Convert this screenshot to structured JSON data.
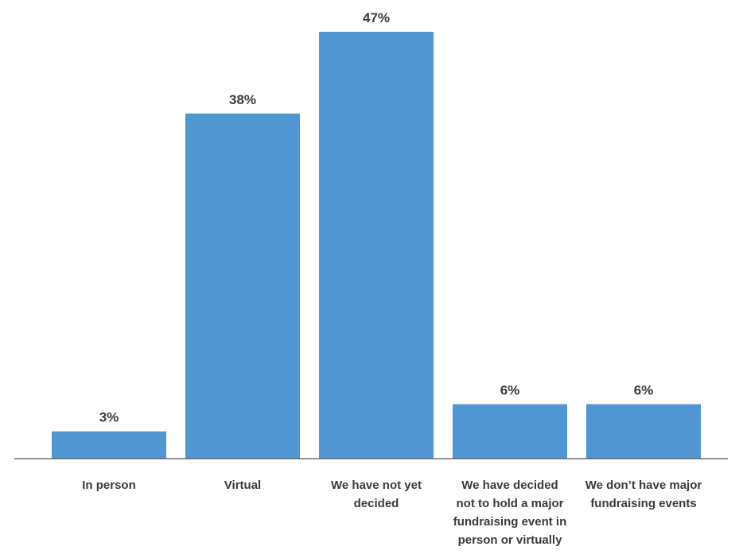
{
  "chart_data": {
    "type": "bar",
    "categories": [
      [
        "In person"
      ],
      [
        "Virtual"
      ],
      [
        "We have not yet",
        "decided"
      ],
      [
        "We have decided",
        "not to hold a major",
        "fundraising event in",
        "person or virtually"
      ],
      [
        "We don’t have major",
        "fundraising events"
      ]
    ],
    "values": [
      3,
      38,
      47,
      6,
      6
    ],
    "value_labels": [
      "3%",
      "38%",
      "47%",
      "6%",
      "6%"
    ],
    "bar_color": "#5096d3",
    "axis_color": "#555555",
    "text_color": "#3a3a3a",
    "title": "",
    "xlabel": "",
    "ylabel": "",
    "ylim": [
      0,
      47
    ],
    "grid": false,
    "legend": "none"
  }
}
